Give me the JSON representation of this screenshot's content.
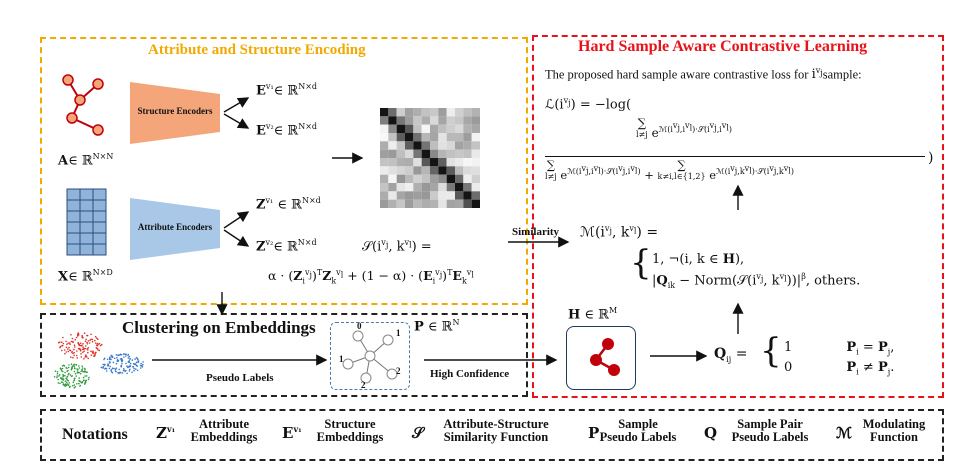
{
  "encoding": {
    "title": "Attribute and Structure Encoding",
    "structure_encoder": "Structure Encoders",
    "attribute_encoder": "Attribute Encoders",
    "A_label": "A∈ ℝ^{N×N}",
    "X_label": "X∈ ℝ^{N×D}",
    "E1": "E^{v1}∈ ℝ^{N×d}",
    "E2": "E^{v2}∈ ℝ^{N×d}",
    "Z1": "Z^{v1}∈ ℝ^{N×d}",
    "Z2": "Z^{v2}∈ ℝ^{N×d}",
    "S_def_line1": "𝒮(i^{vj}, k^{vl}) =",
    "S_def_line2": "α·(Z_i^{vj})ᵀZ_k^{vl} + (1−α)·(E_i^{vj})ᵀE_k^{vl}",
    "similarity_label": "Similarity"
  },
  "contrastive": {
    "title": "Hard Sample Aware Contrastive Learning",
    "intro": "The proposed hard sample aware contrastive loss for",
    "intro_var": "i^{vj}",
    "intro_suffix": "sample:",
    "loss_lhs": "ℒ(i^{vj}) = −log(",
    "M_lhs": "ℳ(i^{vj}, k^{vl}) =",
    "M_case1": "1, ¬(i, k ∈ H),",
    "M_case2": "|Q_ik − Norm(𝒮(i^{vj}, k^{vl}))|^β, others.",
    "H_label": "H ∈ ℝ^M",
    "Q_lhs": "Q_ij =",
    "Q_case1_val": "1",
    "Q_case1_cond": "P_i = P_j,",
    "Q_case2_val": "0",
    "Q_case2_cond": "P_i ≠ P_j."
  },
  "clustering": {
    "title": "Clustering on Embeddings",
    "P_label": "P ∈ ℝ^N",
    "pseudo_labels": "Pseudo Labels",
    "high_confidence": "High Confidence",
    "node_labels": [
      "0",
      "1",
      "1",
      "2",
      "2"
    ]
  },
  "notations": {
    "title": "Notations",
    "items": [
      {
        "symbol": "Z^{v1}",
        "text": "Attribute Embeddings"
      },
      {
        "symbol": "E^{v1}",
        "text": "Structure Embeddings"
      },
      {
        "symbol": "𝒮",
        "text": "Attribute-Structure Similarity Function"
      },
      {
        "symbol": "P",
        "text": "Sample Pseudo Labels"
      },
      {
        "symbol": "Q",
        "text": "Sample Pair Pseudo Labels"
      },
      {
        "symbol": "ℳ",
        "text": "Modulating Function"
      }
    ]
  },
  "colors": {
    "orange": "#f2a900",
    "red": "#e8121a",
    "structure_encoder": "#f4a67a",
    "attribute_encoder": "#a9c8e8",
    "graph_node": "#c0000b",
    "matrix_cell": "#8fb3d9"
  }
}
